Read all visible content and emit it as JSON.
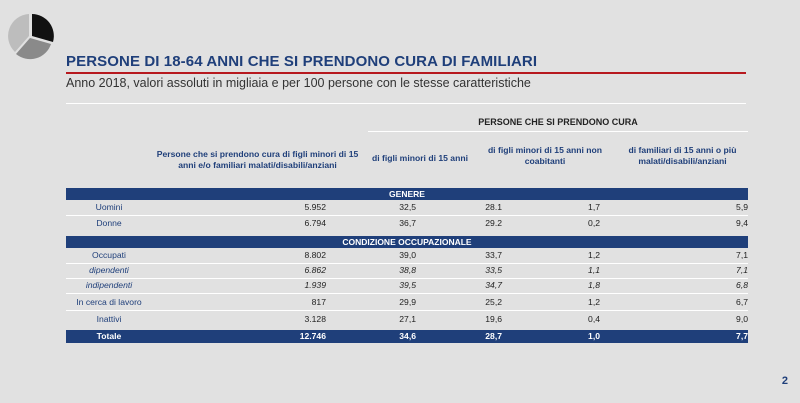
{
  "title": "PERSONE DI 18-64 ANNI CHE SI PRENDONO CURA DI FAMILIARI",
  "subtitle": "Anno 2018, valori assoluti in migliaia e per 100 persone con le stesse caratteristiche",
  "group_header": "PERSONE CHE SI PRENDONO CURA",
  "columns": [
    "Persone che si prendono cura di figli minori di 15 anni e/o familiari malati/disabili/anziani",
    "di figli minori di 15 anni",
    "di figli minori di 15 anni non coabitanti",
    "di familiari di 15 anni o più malati/disabili/anziani"
  ],
  "sections": {
    "genere": "GENERE",
    "condizione": "CONDIZIONE OCCUPAZIONALE"
  },
  "rows_genere": [
    {
      "label": "Uomini",
      "v": [
        "5.952",
        "32,5",
        "28.1",
        "1,7",
        "5,9"
      ]
    },
    {
      "label": "Donne",
      "v": [
        "6.794",
        "36,7",
        "29.2",
        "0,2",
        "9,4"
      ]
    }
  ],
  "rows_cond": [
    {
      "label": "Occupati",
      "v": [
        "8.802",
        "39,0",
        "33,7",
        "1,2",
        "7,1"
      ]
    },
    {
      "label": "dipendenti",
      "v": [
        "6.862",
        "38,8",
        "33,5",
        "1,1",
        "7,1"
      ]
    },
    {
      "label": "indipendenti",
      "v": [
        "1.939",
        "39,5",
        "34,7",
        "1,8",
        "6,8"
      ]
    },
    {
      "label": "In cerca di lavoro",
      "v": [
        "817",
        "29,9",
        "25,2",
        "1,2",
        "6,7"
      ]
    },
    {
      "label": "Inattivi",
      "v": [
        "3.128",
        "27,1",
        "19,6",
        "0,4",
        "9,0"
      ]
    }
  ],
  "total": {
    "label": "Totale",
    "v": [
      "12.746",
      "34,6",
      "28,7",
      "1,0",
      "7,7"
    ]
  },
  "page_number": "2",
  "colors": {
    "navy": "#1f3f7a",
    "red": "#b7191f",
    "background": "#e1e1e1"
  }
}
